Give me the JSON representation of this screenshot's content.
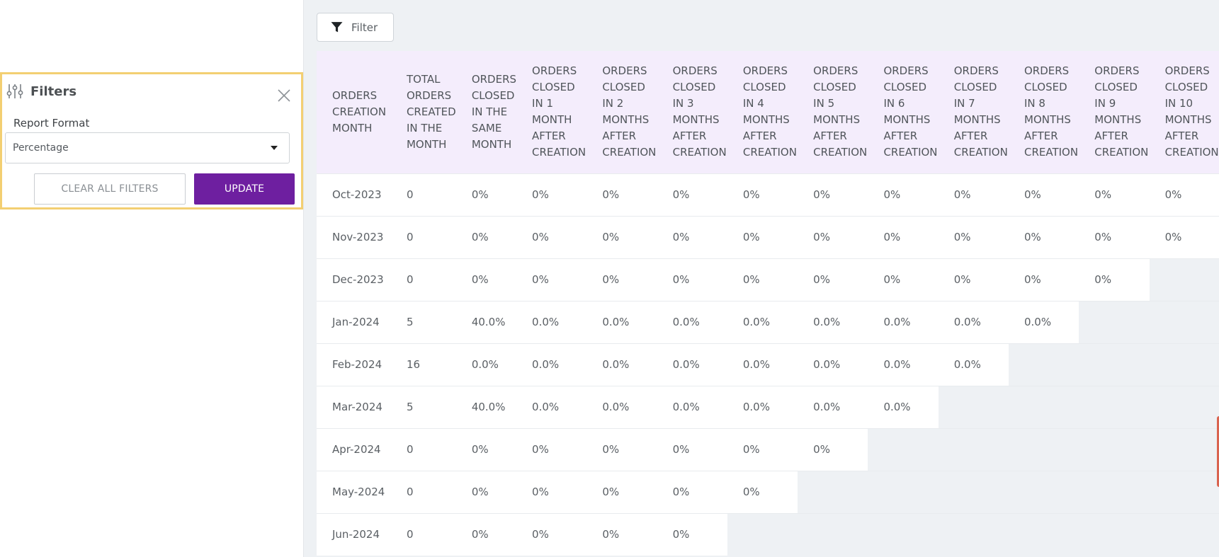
{
  "filters_panel": {
    "title": "Filters",
    "report_format_label": "Report Format",
    "report_format_value": "Percentage",
    "clear_label": "CLEAR ALL FILTERS",
    "update_label": "UPDATE"
  },
  "toolbar": {
    "filter_label": "Filter"
  },
  "colors": {
    "accent_purple": "#6e1fa0",
    "panel_border": "#f3cf72",
    "header_bg": "#f4edfc",
    "page_bg": "#eef1f4"
  },
  "table": {
    "headers": [
      "ORDERS\nCREATION\nMONTH",
      "TOTAL\nORDERS\nCREATED\nIN THE\nMONTH",
      "ORDERS\nCLOSED\nIN THE\nSAME\nMONTH",
      "ORDERS\nCLOSED\nIN 1\nMONTH\nAFTER\nCREATION",
      "ORDERS\nCLOSED\nIN 2\nMONTHS\nAFTER\nCREATION",
      "ORDERS\nCLOSED\nIN 3\nMONTHS\nAFTER\nCREATION",
      "ORDERS\nCLOSED\nIN 4\nMONTHS\nAFTER\nCREATION",
      "ORDERS\nCLOSED\nIN 5\nMONTHS\nAFTER\nCREATION",
      "ORDERS\nCLOSED\nIN 6\nMONTHS\nAFTER\nCREATION",
      "ORDERS\nCLOSED\nIN 7\nMONTHS\nAFTER\nCREATION",
      "ORDERS\nCLOSED\nIN 8\nMONTHS\nAFTER\nCREATION",
      "ORDERS\nCLOSED\nIN 9\nMONTHS\nAFTER\nCREATION",
      "ORDERS\nCLOSED\nIN 10\nMONTHS\nAFTER\nCREATION"
    ],
    "rows": [
      [
        "Oct-2023",
        "0",
        "0%",
        "0%",
        "0%",
        "0%",
        "0%",
        "0%",
        "0%",
        "0%",
        "0%",
        "0%",
        "0%"
      ],
      [
        "Nov-2023",
        "0",
        "0%",
        "0%",
        "0%",
        "0%",
        "0%",
        "0%",
        "0%",
        "0%",
        "0%",
        "0%",
        "0%"
      ],
      [
        "Dec-2023",
        "0",
        "0%",
        "0%",
        "0%",
        "0%",
        "0%",
        "0%",
        "0%",
        "0%",
        "0%",
        "0%"
      ],
      [
        "Jan-2024",
        "5",
        "40.0%",
        "0.0%",
        "0.0%",
        "0.0%",
        "0.0%",
        "0.0%",
        "0.0%",
        "0.0%",
        "0.0%"
      ],
      [
        "Feb-2024",
        "16",
        "0.0%",
        "0.0%",
        "0.0%",
        "0.0%",
        "0.0%",
        "0.0%",
        "0.0%",
        "0.0%"
      ],
      [
        "Mar-2024",
        "5",
        "40.0%",
        "0.0%",
        "0.0%",
        "0.0%",
        "0.0%",
        "0.0%",
        "0.0%"
      ],
      [
        "Apr-2024",
        "0",
        "0%",
        "0%",
        "0%",
        "0%",
        "0%",
        "0%"
      ],
      [
        "May-2024",
        "0",
        "0%",
        "0%",
        "0%",
        "0%",
        "0%"
      ],
      [
        "Jun-2024",
        "0",
        "0%",
        "0%",
        "0%",
        "0%"
      ]
    ]
  }
}
